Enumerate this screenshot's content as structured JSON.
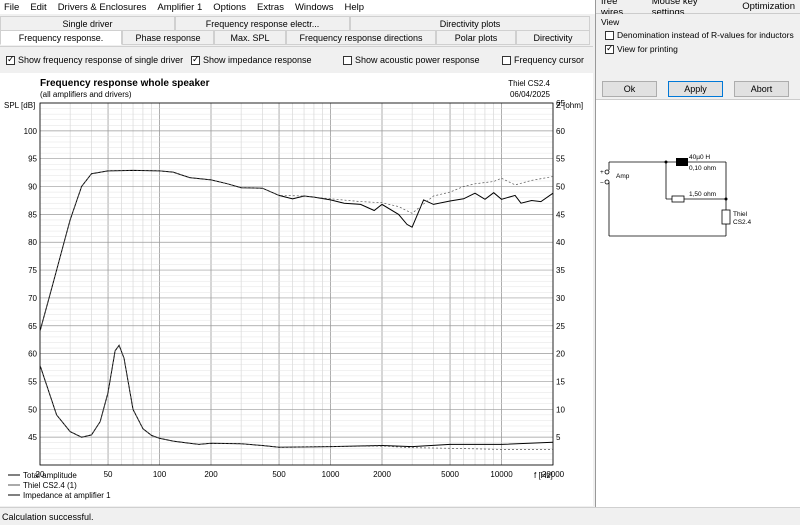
{
  "menu": [
    "File",
    "Edit",
    "Drivers & Enclosures",
    "Amplifier 1",
    "Options",
    "Extras",
    "Windows",
    "Help"
  ],
  "tabs_row1": [
    "Single driver",
    "Frequency response electr...",
    "Directivity plots"
  ],
  "tabs_row2": [
    "Frequency response.",
    "Phase response",
    "Max. SPL",
    "Frequency response directions",
    "Polar plots",
    "Directivity"
  ],
  "options": {
    "show_single_driver": {
      "label": "Show frequency response of single driver",
      "checked": true
    },
    "show_impedance": {
      "label": "Show impedance response",
      "checked": true
    },
    "show_acoustic_power": {
      "label": "Show acoustic power response",
      "checked": false
    },
    "frequency_cursor": {
      "label": "Frequency cursor",
      "checked": false
    }
  },
  "chart_data": {
    "type": "line",
    "title": "Frequency response whole speaker",
    "subtitle": "(all amplifiers and drivers)",
    "header_right_1": "Thiel CS2.4",
    "header_right_2": "06/04/2025",
    "ylabel_left": "SPL [dB]",
    "ylabel_right": "Z [ohm]",
    "xlabel": "f [Hz]",
    "x_scale": "log",
    "xlim": [
      20,
      20000
    ],
    "ylim_left": [
      40,
      105
    ],
    "ylim_right": [
      0,
      65
    ],
    "x_ticks": [
      20,
      50,
      100,
      200,
      500,
      1000,
      2000,
      5000,
      10000,
      20000
    ],
    "y_left_ticks": [
      45,
      50,
      55,
      60,
      65,
      70,
      75,
      80,
      85,
      90,
      95,
      100
    ],
    "y_right_ticks": [
      5,
      10,
      15,
      20,
      25,
      30,
      35,
      40,
      45,
      50,
      55,
      60,
      65
    ],
    "grid": true,
    "series": [
      {
        "name": "Total amplitude",
        "style": "solid",
        "points": [
          [
            20,
            64
          ],
          [
            25,
            75
          ],
          [
            30,
            84
          ],
          [
            35,
            90
          ],
          [
            40,
            92.3
          ],
          [
            50,
            92.8
          ],
          [
            70,
            92.9
          ],
          [
            100,
            92.8
          ],
          [
            120,
            92.6
          ],
          [
            150,
            91.6
          ],
          [
            200,
            91.2
          ],
          [
            250,
            90.5
          ],
          [
            300,
            89.8
          ],
          [
            400,
            89.7
          ],
          [
            500,
            88.4
          ],
          [
            600,
            87.8
          ],
          [
            700,
            88.3
          ],
          [
            800,
            88.1
          ],
          [
            1000,
            87.6
          ],
          [
            1200,
            87.0
          ],
          [
            1500,
            86.8
          ],
          [
            1800,
            85.7
          ],
          [
            2000,
            86.8
          ],
          [
            2500,
            85.0
          ],
          [
            2800,
            83.2
          ],
          [
            3000,
            82.7
          ],
          [
            3500,
            87.6
          ],
          [
            4000,
            86.8
          ],
          [
            5000,
            87.4
          ],
          [
            6000,
            87.8
          ],
          [
            7000,
            88.8
          ],
          [
            8000,
            87.7
          ],
          [
            9000,
            88.9
          ],
          [
            10000,
            87.7
          ],
          [
            12000,
            88.4
          ],
          [
            13000,
            87.0
          ],
          [
            15000,
            87.5
          ],
          [
            17000,
            87.3
          ],
          [
            20000,
            88.8
          ]
        ]
      },
      {
        "name": "Thiel CS2.4 (1)",
        "style": "dashed",
        "points": [
          [
            20,
            64
          ],
          [
            25,
            75
          ],
          [
            30,
            84
          ],
          [
            35,
            90
          ],
          [
            40,
            92.3
          ],
          [
            50,
            92.8
          ],
          [
            70,
            92.9
          ],
          [
            100,
            92.8
          ],
          [
            120,
            92.6
          ],
          [
            150,
            91.6
          ],
          [
            200,
            91.2
          ],
          [
            250,
            90.5
          ],
          [
            300,
            89.8
          ],
          [
            400,
            89.7
          ],
          [
            500,
            88.4
          ],
          [
            700,
            88.3
          ],
          [
            1000,
            87.8
          ],
          [
            1500,
            87.3
          ],
          [
            2000,
            87.1
          ],
          [
            2500,
            86.4
          ],
          [
            3000,
            85.2
          ],
          [
            4000,
            88.3
          ],
          [
            5000,
            89.0
          ],
          [
            6000,
            90.0
          ],
          [
            7000,
            90.5
          ],
          [
            9000,
            90.9
          ],
          [
            10000,
            91.5
          ],
          [
            12000,
            90.3
          ],
          [
            15000,
            91.1
          ],
          [
            20000,
            91.8
          ]
        ]
      },
      {
        "name": "Impedance at amplifier 1",
        "style": "solid",
        "axis": "right",
        "points": [
          [
            20,
            17.9
          ],
          [
            25,
            9.0
          ],
          [
            30,
            6.0
          ],
          [
            35,
            5.0
          ],
          [
            40,
            5.4
          ],
          [
            45,
            7.8
          ],
          [
            50,
            13.0
          ],
          [
            55,
            20.5
          ],
          [
            58,
            21.5
          ],
          [
            62,
            19.2
          ],
          [
            70,
            10.0
          ],
          [
            80,
            6.5
          ],
          [
            90,
            5.3
          ],
          [
            100,
            4.8
          ],
          [
            120,
            4.3
          ],
          [
            150,
            3.9
          ],
          [
            170,
            3.7
          ],
          [
            200,
            3.9
          ],
          [
            300,
            3.8
          ],
          [
            400,
            3.5
          ],
          [
            500,
            3.2
          ],
          [
            1000,
            3.3
          ],
          [
            2000,
            3.5
          ],
          [
            3000,
            3.3
          ],
          [
            5000,
            3.7
          ],
          [
            10000,
            3.7
          ],
          [
            20000,
            4.1
          ]
        ]
      },
      {
        "name": "",
        "style": "dashed",
        "axis": "right",
        "points": [
          [
            20,
            17.9
          ],
          [
            25,
            9.0
          ],
          [
            30,
            6.0
          ],
          [
            35,
            5.0
          ],
          [
            40,
            5.4
          ],
          [
            45,
            7.8
          ],
          [
            50,
            13.0
          ],
          [
            55,
            20.5
          ],
          [
            58,
            21.5
          ],
          [
            62,
            19.2
          ],
          [
            70,
            10.0
          ],
          [
            80,
            6.5
          ],
          [
            90,
            5.3
          ],
          [
            100,
            4.8
          ],
          [
            120,
            4.3
          ],
          [
            150,
            3.9
          ],
          [
            170,
            3.7
          ],
          [
            200,
            3.9
          ],
          [
            300,
            3.8
          ],
          [
            400,
            3.5
          ],
          [
            500,
            3.2
          ],
          [
            1000,
            3.3
          ],
          [
            2000,
            3.4
          ],
          [
            3000,
            3.1
          ],
          [
            5000,
            3.0
          ],
          [
            10000,
            2.8
          ],
          [
            20000,
            2.8
          ]
        ]
      }
    ],
    "legend": [
      "Total amplitude",
      "Thiel CS2.4 (1)",
      "Impedance at amplifier 1"
    ]
  },
  "status": "Calculation successful.",
  "right_panel": {
    "tabs": [
      "free wires",
      "Mouse key settings",
      "Optimization"
    ],
    "view_label": "View",
    "denomination": {
      "label": "Denomination instead of R-values for inductors",
      "checked": false
    },
    "view_for_printing": {
      "label": "View for printing",
      "checked": true
    },
    "buttons": {
      "ok": "Ok",
      "apply": "Apply",
      "abort": "Abort"
    },
    "schematic": {
      "amp_label": "Amp",
      "plus": "+",
      "minus": "−",
      "inductor_value": "40µ0 H",
      "inductor_res": "0,10 ohm",
      "resistor_value": "1,50 ohm",
      "speaker_line1": "Thiel",
      "speaker_line2": "CS2.4"
    }
  }
}
